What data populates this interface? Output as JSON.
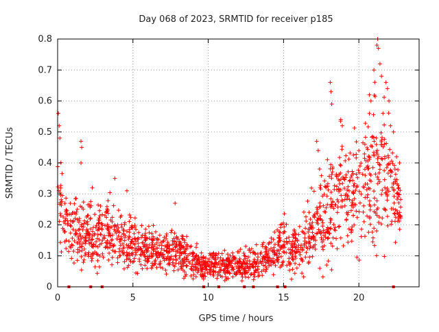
{
  "chart_data": {
    "type": "scatter",
    "title": "Day 068 of 2023, SRMTID for receiver p185",
    "xlabel": "GPS time / hours",
    "ylabel": "SRMTID / TECUs",
    "xlim": [
      0,
      24
    ],
    "ylim": [
      0,
      0.8
    ],
    "x_ticks": [
      0,
      5,
      10,
      15,
      20
    ],
    "x_tick_labels": [
      "0",
      "5",
      "10",
      "15",
      "20"
    ],
    "y_ticks": [
      0,
      0.1,
      0.2,
      0.3,
      0.4,
      0.5,
      0.6,
      0.7,
      0.8
    ],
    "y_tick_labels": [
      "0",
      "0.1",
      "0.2",
      "0.3",
      "0.4",
      "0.5",
      "0.6",
      "0.7",
      "0.8"
    ],
    "grid": true,
    "marker": "+",
    "color": "#ff0000",
    "envelope": {
      "x": [
        0,
        0.3,
        0.7,
        1.5,
        2.5,
        3.5,
        4.5,
        5.5,
        6.5,
        7.5,
        8.5,
        9.5,
        10.5,
        11.5,
        12.5,
        13.5,
        14.5,
        15,
        15.5,
        16.5,
        17.5,
        18.5,
        19.5,
        20.5,
        21,
        21.5,
        22,
        22.5,
        22.8
      ],
      "median": [
        0.35,
        0.25,
        0.2,
        0.17,
        0.17,
        0.18,
        0.15,
        0.13,
        0.12,
        0.11,
        0.1,
        0.07,
        0.07,
        0.07,
        0.07,
        0.08,
        0.12,
        0.15,
        0.1,
        0.15,
        0.22,
        0.28,
        0.3,
        0.35,
        0.35,
        0.4,
        0.33,
        0.28,
        0.22
      ],
      "spread": [
        0.12,
        0.08,
        0.06,
        0.06,
        0.06,
        0.06,
        0.05,
        0.04,
        0.04,
        0.04,
        0.04,
        0.03,
        0.03,
        0.03,
        0.03,
        0.03,
        0.04,
        0.05,
        0.04,
        0.06,
        0.09,
        0.12,
        0.1,
        0.12,
        0.15,
        0.15,
        0.12,
        0.08,
        0.06
      ]
    },
    "spikes": [
      {
        "x": 0.05,
        "y": 0.56
      },
      {
        "x": 0.1,
        "y": 0.52
      },
      {
        "x": 0.15,
        "y": 0.48
      },
      {
        "x": 1.55,
        "y": 0.47
      },
      {
        "x": 1.6,
        "y": 0.45
      },
      {
        "x": 1.55,
        "y": 0.4
      },
      {
        "x": 2.3,
        "y": 0.32
      },
      {
        "x": 3.8,
        "y": 0.35
      },
      {
        "x": 4.6,
        "y": 0.31
      },
      {
        "x": 7.8,
        "y": 0.27
      },
      {
        "x": 17.2,
        "y": 0.47
      },
      {
        "x": 17.3,
        "y": 0.44
      },
      {
        "x": 18.1,
        "y": 0.66
      },
      {
        "x": 18.15,
        "y": 0.63
      },
      {
        "x": 18.2,
        "y": 0.59
      },
      {
        "x": 18.8,
        "y": 0.54
      },
      {
        "x": 18.9,
        "y": 0.52
      },
      {
        "x": 20.7,
        "y": 0.62
      },
      {
        "x": 20.8,
        "y": 0.6
      },
      {
        "x": 21.0,
        "y": 0.7
      },
      {
        "x": 21.2,
        "y": 0.78
      },
      {
        "x": 21.25,
        "y": 0.8
      },
      {
        "x": 21.3,
        "y": 0.77
      },
      {
        "x": 21.4,
        "y": 0.72
      },
      {
        "x": 21.5,
        "y": 0.68
      },
      {
        "x": 21.8,
        "y": 0.66
      },
      {
        "x": 21.9,
        "y": 0.64
      },
      {
        "x": 22.0,
        "y": 0.6
      },
      {
        "x": 21.6,
        "y": 0.56
      },
      {
        "x": 22.1,
        "y": 0.52
      },
      {
        "x": 22.3,
        "y": 0.5
      },
      {
        "x": 20.4,
        "y": 0.46
      },
      {
        "x": 22.5,
        "y": 0.42
      },
      {
        "x": 22.7,
        "y": 0.4
      }
    ],
    "zero_markers": [
      0.75,
      2.2,
      2.95,
      9.7,
      10.7,
      12.4,
      13,
      14.6,
      15.1,
      22.3
    ]
  }
}
